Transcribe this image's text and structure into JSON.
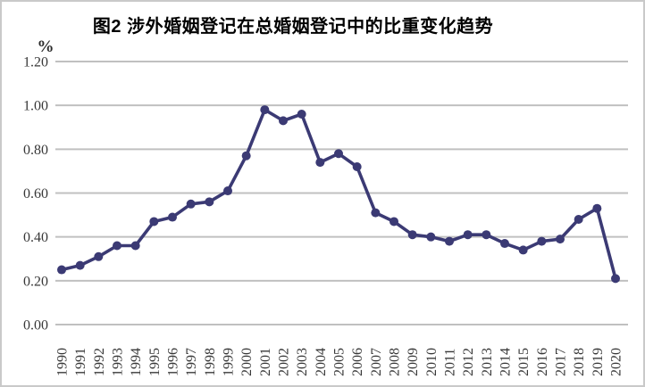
{
  "chart_data": {
    "type": "line",
    "title": "图2  涉外婚姻登记在总婚姻登记中的比重变化趋势",
    "unit_label": "%",
    "x": [
      "1990",
      "1991",
      "1992",
      "1993",
      "1994",
      "1995",
      "1996",
      "1997",
      "1998",
      "1999",
      "2000",
      "2001",
      "2002",
      "2003",
      "2004",
      "2005",
      "2006",
      "2007",
      "2008",
      "2009",
      "2010",
      "2011",
      "2012",
      "2013",
      "2014",
      "2015",
      "2016",
      "2017",
      "2018",
      "2019",
      "2020"
    ],
    "values": [
      0.25,
      0.27,
      0.31,
      0.36,
      0.36,
      0.47,
      0.49,
      0.55,
      0.56,
      0.61,
      0.77,
      0.98,
      0.93,
      0.96,
      0.74,
      0.78,
      0.72,
      0.51,
      0.47,
      0.41,
      0.4,
      0.38,
      0.41,
      0.41,
      0.37,
      0.34,
      0.38,
      0.39,
      0.48,
      0.53,
      0.21
    ],
    "ylabel": "%",
    "xlabel": "",
    "ylim": [
      0.0,
      1.2
    ],
    "ytick_labels": [
      "0.00",
      "0.20",
      "0.40",
      "0.60",
      "0.80",
      "1.00",
      "1.20"
    ],
    "grid": "horizontal",
    "legend": "none",
    "colors": {
      "line": "#3b3a74",
      "marker": "#3b3a74",
      "gridline": "#c0c0c0",
      "tick_text": "#383838",
      "title_text": "#000000",
      "frame_border": "#c9c9c9"
    }
  }
}
